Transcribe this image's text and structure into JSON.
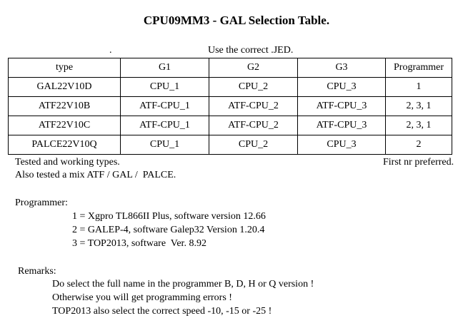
{
  "title": "CPU09MM3 - GAL Selection Table.",
  "dot": ".",
  "use_correct": "Use the correct .JED.",
  "table": {
    "headers": [
      "type",
      "G1",
      "G2",
      "G3",
      "Programmer"
    ],
    "rows": [
      [
        "GAL22V10D",
        "CPU_1",
        "CPU_2",
        "CPU_3",
        "1"
      ],
      [
        "ATF22V10B",
        "ATF-CPU_1",
        "ATF-CPU_2",
        "ATF-CPU_3",
        "2, 3, 1"
      ],
      [
        "ATF22V10C",
        "ATF-CPU_1",
        "ATF-CPU_2",
        "ATF-CPU_3",
        "2, 3, 1"
      ],
      [
        "PALCE22V10Q",
        "CPU_1",
        "CPU_2",
        "CPU_3",
        "2"
      ]
    ]
  },
  "notes": {
    "tested": "Tested and working types.",
    "first_pref": "First nr preferred.",
    "mix": "Also tested a mix ATF / GAL /  PALCE."
  },
  "programmer": {
    "heading": "Programmer:",
    "items": [
      "1 = Xgpro TL866II Plus, software version 12.66",
      "2 = GALEP-4, software Galep32 Version 1.20.4",
      "3 = TOP2013, software  Ver. 8.92"
    ]
  },
  "remarks": {
    "heading": "Remarks:",
    "items": [
      "Do select the full name in the programmer B, D, H or Q version !",
      "Otherwise you will get programming errors !",
      "TOP2013 also select the correct speed -10, -15 or -25 !"
    ]
  }
}
